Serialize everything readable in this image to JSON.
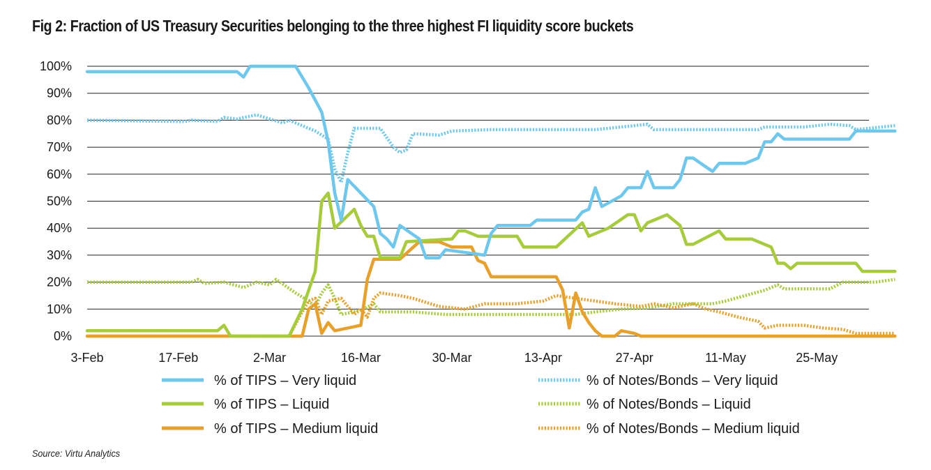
{
  "title": "Fig 2: Fraction of US Treasury Securities belonging to the three highest FI liquidity score buckets",
  "source": "Source: Virtu Analytics",
  "chart_data": {
    "type": "line",
    "x_ticks": [
      "3-Feb",
      "17-Feb",
      "2-Mar",
      "16-Mar",
      "30-Mar",
      "13-Apr",
      "27-Apr",
      "11-May",
      "25-May"
    ],
    "y_ticks": [
      "0%",
      "10%",
      "20%",
      "30%",
      "40%",
      "50%",
      "60%",
      "70%",
      "80%",
      "90%",
      "100%"
    ],
    "ylim": [
      0,
      100
    ],
    "xlim_days": [
      0,
      120
    ],
    "grid": "horizontal",
    "legend_position": "bottom",
    "series": [
      {
        "name": "% of TIPS – Very liquid",
        "color": "#6ec8ee",
        "style": "solid",
        "points": [
          [
            0,
            98
          ],
          [
            23,
            98
          ],
          [
            24,
            96
          ],
          [
            25,
            100
          ],
          [
            32,
            100
          ],
          [
            34,
            92
          ],
          [
            36,
            83
          ],
          [
            37,
            72
          ],
          [
            38,
            53
          ],
          [
            39,
            43
          ],
          [
            40,
            58
          ],
          [
            44,
            48
          ],
          [
            45,
            38
          ],
          [
            46,
            36
          ],
          [
            47,
            33
          ],
          [
            48,
            41
          ],
          [
            51,
            36
          ],
          [
            52,
            29
          ],
          [
            54,
            29
          ],
          [
            55,
            32
          ],
          [
            61,
            30
          ],
          [
            62,
            38
          ],
          [
            63,
            41
          ],
          [
            68,
            41
          ],
          [
            69,
            43
          ],
          [
            75,
            43
          ],
          [
            76,
            46
          ],
          [
            77,
            47
          ],
          [
            78,
            55
          ],
          [
            79,
            48
          ],
          [
            82,
            52
          ],
          [
            83,
            55
          ],
          [
            85,
            55
          ],
          [
            86,
            61
          ],
          [
            87,
            55
          ],
          [
            90,
            55
          ],
          [
            91,
            58
          ],
          [
            92,
            66
          ],
          [
            93,
            66
          ],
          [
            96,
            61
          ],
          [
            97,
            64
          ],
          [
            101,
            64
          ],
          [
            103,
            66
          ],
          [
            104,
            72
          ],
          [
            105,
            72
          ],
          [
            106,
            75
          ],
          [
            107,
            73
          ],
          [
            117,
            73
          ],
          [
            118,
            76
          ],
          [
            124,
            76
          ]
        ]
      },
      {
        "name": "% of Notes/Bonds – Very liquid",
        "color": "#6ec8ee",
        "style": "dotted",
        "points": [
          [
            0,
            80
          ],
          [
            15,
            79.5
          ],
          [
            16,
            80
          ],
          [
            20,
            79.5
          ],
          [
            21,
            81
          ],
          [
            23,
            80.5
          ],
          [
            26,
            82
          ],
          [
            30,
            79
          ],
          [
            31,
            80
          ],
          [
            35,
            76
          ],
          [
            37,
            73
          ],
          [
            38,
            62
          ],
          [
            39,
            57
          ],
          [
            40,
            68
          ],
          [
            41,
            77
          ],
          [
            45,
            77
          ],
          [
            47,
            70
          ],
          [
            48,
            68
          ],
          [
            49,
            69
          ],
          [
            50,
            75
          ],
          [
            54,
            74.5
          ],
          [
            56,
            76
          ],
          [
            62,
            76.5
          ],
          [
            78,
            76.5
          ],
          [
            80,
            77
          ],
          [
            86,
            78.5
          ],
          [
            87,
            76.5
          ],
          [
            103,
            76.5
          ],
          [
            104,
            77.5
          ],
          [
            110,
            77.5
          ],
          [
            114,
            78.5
          ],
          [
            117,
            78
          ],
          [
            118,
            76.5
          ],
          [
            124,
            78
          ]
        ]
      },
      {
        "name": "% of TIPS – Liquid",
        "color": "#a6cc3b",
        "style": "solid",
        "points": [
          [
            0,
            2
          ],
          [
            20,
            2
          ],
          [
            21,
            4
          ],
          [
            22,
            0
          ],
          [
            31,
            0
          ],
          [
            33,
            10
          ],
          [
            35,
            24
          ],
          [
            36,
            50
          ],
          [
            37,
            53
          ],
          [
            38,
            40
          ],
          [
            41,
            47
          ],
          [
            42,
            41
          ],
          [
            43,
            37
          ],
          [
            44,
            37
          ],
          [
            45,
            29
          ],
          [
            47,
            29
          ],
          [
            48,
            29
          ],
          [
            49,
            35
          ],
          [
            56,
            36
          ],
          [
            57,
            39
          ],
          [
            58,
            39
          ],
          [
            60,
            37
          ],
          [
            66,
            37
          ],
          [
            67,
            33
          ],
          [
            72,
            33
          ],
          [
            76,
            42
          ],
          [
            77,
            37
          ],
          [
            80,
            40
          ],
          [
            83,
            45
          ],
          [
            84,
            45
          ],
          [
            85,
            39
          ],
          [
            86,
            42
          ],
          [
            89,
            45
          ],
          [
            91,
            41
          ],
          [
            92,
            34
          ],
          [
            93,
            34
          ],
          [
            97,
            39
          ],
          [
            98,
            36
          ],
          [
            102,
            36
          ],
          [
            105,
            33
          ],
          [
            106,
            27
          ],
          [
            107,
            27
          ],
          [
            108,
            25
          ],
          [
            109,
            27
          ],
          [
            118,
            27
          ],
          [
            119,
            24
          ],
          [
            124,
            24
          ]
        ]
      },
      {
        "name": "% of Notes/Bonds – Liquid",
        "color": "#a6cc3b",
        "style": "dotted",
        "points": [
          [
            0,
            20
          ],
          [
            16,
            20
          ],
          [
            17,
            21
          ],
          [
            18,
            19.5
          ],
          [
            21,
            20
          ],
          [
            24,
            18
          ],
          [
            26,
            20
          ],
          [
            28,
            19
          ],
          [
            29,
            21
          ],
          [
            32,
            16
          ],
          [
            34,
            13
          ],
          [
            35,
            11
          ],
          [
            36,
            16
          ],
          [
            37,
            19
          ],
          [
            38,
            14
          ],
          [
            39,
            8
          ],
          [
            42,
            9.5
          ],
          [
            44,
            12
          ],
          [
            45,
            9
          ],
          [
            50,
            9
          ],
          [
            55,
            8
          ],
          [
            75,
            8
          ],
          [
            78,
            9
          ],
          [
            82,
            10
          ],
          [
            86,
            10.5
          ],
          [
            90,
            12
          ],
          [
            96,
            12
          ],
          [
            98,
            13
          ],
          [
            101,
            15
          ],
          [
            104,
            17
          ],
          [
            106,
            19
          ],
          [
            107,
            17.5
          ],
          [
            114,
            17.5
          ],
          [
            116,
            20
          ],
          [
            121,
            20
          ],
          [
            124,
            21
          ]
        ]
      },
      {
        "name": "% of TIPS – Medium liquid",
        "color": "#e9a02a",
        "style": "solid",
        "points": [
          [
            0,
            0
          ],
          [
            33,
            0
          ],
          [
            34,
            10
          ],
          [
            35,
            12
          ],
          [
            36,
            1
          ],
          [
            37,
            5
          ],
          [
            38,
            2
          ],
          [
            42,
            4
          ],
          [
            43,
            21
          ],
          [
            44,
            28.5
          ],
          [
            46,
            28.5
          ],
          [
            48,
            28.5
          ],
          [
            51,
            35
          ],
          [
            54,
            35
          ],
          [
            56,
            33
          ],
          [
            59,
            33
          ],
          [
            60,
            28
          ],
          [
            61,
            27
          ],
          [
            62,
            22
          ],
          [
            72,
            22
          ],
          [
            73,
            17
          ],
          [
            74,
            3
          ],
          [
            75,
            16
          ],
          [
            76,
            9
          ],
          [
            77,
            5
          ],
          [
            78,
            2
          ],
          [
            79,
            0
          ],
          [
            81,
            0
          ],
          [
            82,
            2
          ],
          [
            84,
            1
          ],
          [
            85,
            0
          ],
          [
            124,
            0
          ]
        ]
      },
      {
        "name": "% of Notes/Bonds – Medium liquid",
        "color": "#e9a02a",
        "style": "dotted",
        "points": [
          [
            0,
            0
          ],
          [
            31,
            0
          ],
          [
            33,
            9
          ],
          [
            34,
            13
          ],
          [
            35,
            14
          ],
          [
            36,
            8
          ],
          [
            37,
            13
          ],
          [
            39,
            14
          ],
          [
            41,
            8
          ],
          [
            42,
            10
          ],
          [
            43,
            7
          ],
          [
            44,
            14
          ],
          [
            45,
            16
          ],
          [
            48,
            15
          ],
          [
            50,
            14
          ],
          [
            54,
            11
          ],
          [
            58,
            10
          ],
          [
            61,
            12
          ],
          [
            66,
            12
          ],
          [
            70,
            13
          ],
          [
            72,
            15
          ],
          [
            75,
            14
          ],
          [
            78,
            13
          ],
          [
            81,
            12
          ],
          [
            85,
            11
          ],
          [
            87,
            12
          ],
          [
            90,
            10.5
          ],
          [
            93,
            12
          ],
          [
            95,
            10
          ],
          [
            97,
            9
          ],
          [
            100,
            7
          ],
          [
            103,
            5.5
          ],
          [
            104,
            3
          ],
          [
            106,
            4
          ],
          [
            110,
            4
          ],
          [
            113,
            3
          ],
          [
            116,
            2.5
          ],
          [
            118,
            1
          ],
          [
            124,
            1
          ]
        ]
      }
    ],
    "legend": [
      [
        "% of TIPS – Very liquid",
        "% of Notes/Bonds – Very liquid"
      ],
      [
        "% of TIPS – Liquid",
        "% of Notes/Bonds – Liquid"
      ],
      [
        "% of TIPS – Medium liquid",
        "% of Notes/Bonds – Medium liquid"
      ]
    ]
  }
}
